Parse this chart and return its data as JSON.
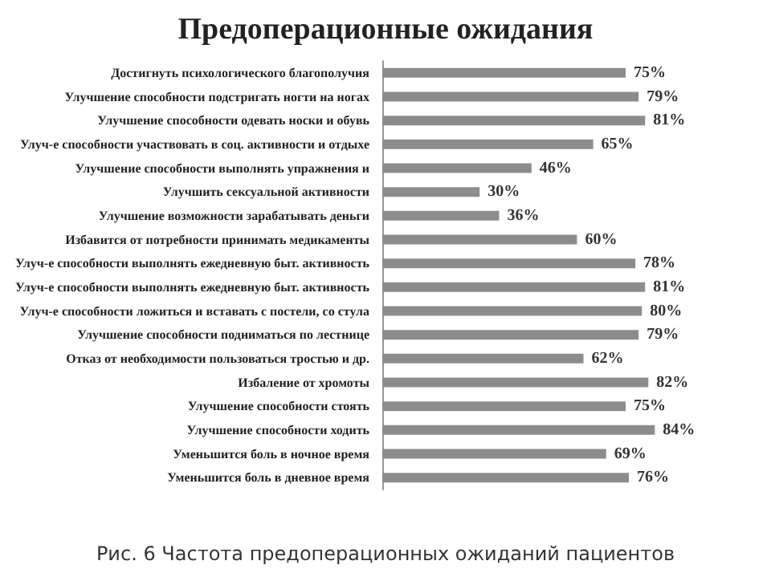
{
  "chart_data": {
    "type": "bar",
    "orientation": "horizontal",
    "title": "Предоперационные ожидания",
    "categories": [
      "Достигнуть психологического благополучия",
      "Улучшение способности подстригать ногти на ногах",
      "Улучшение способности одевать носки и обувь",
      "Улуч-е способности участвовать в соц. активности и отдыхе",
      "Улучшение способности выполнять упражнения и",
      "Улучшить сексуальной активности",
      "Улучшение возможности зарабатывать деньги",
      "Избавится от потребности принимать медикаменты",
      "Улуч-е способности выполнять ежедневную быт. активность",
      "Улуч-е способности выполнять ежедневную быт. активность",
      "Улуч-е способности ложиться и вставать с постели, со стула",
      "Улучшение способности подниматься по лестнице",
      "Отказ от необходимости пользоваться тростью и др.",
      "Избаление от хромоты",
      "Улучшение способности стоять",
      "Улучшение способности ходить",
      "Уменьшится боль в ночное время",
      "Уменьшится боль в дневное время"
    ],
    "values": [
      75,
      79,
      81,
      65,
      46,
      30,
      36,
      60,
      78,
      81,
      80,
      79,
      62,
      82,
      75,
      84,
      69,
      76
    ],
    "value_labels": [
      "75%",
      "79%",
      "81%",
      "65%",
      "46%",
      "30%",
      "36%",
      "60%",
      "78%",
      "81%",
      "80%",
      "79%",
      "62%",
      "82%",
      "75%",
      "84%",
      "69%",
      "76%"
    ],
    "color": "#8c8c8c",
    "annotations": [
      "Рис. 6 Частота предоперационных ожиданий пациентов"
    ]
  }
}
